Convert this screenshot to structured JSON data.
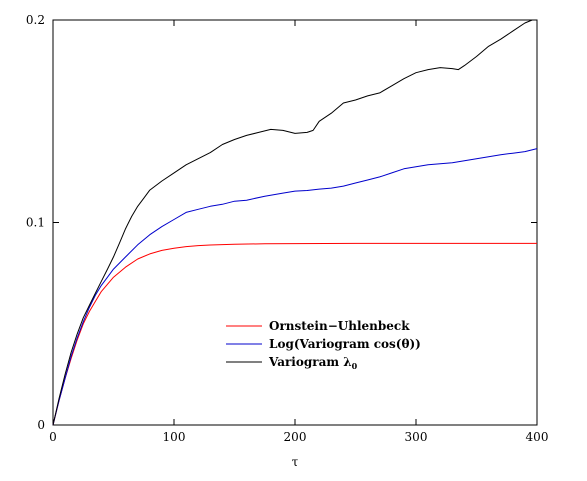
{
  "chart_data": {
    "type": "line",
    "xlabel": "τ",
    "ylabel": "",
    "xlim": [
      0,
      400
    ],
    "ylim": [
      0,
      0.2
    ],
    "x_ticks": [
      0,
      100,
      200,
      300,
      400
    ],
    "x_tick_labels": [
      "0",
      "100",
      "200",
      "300",
      "400"
    ],
    "y_ticks": [
      0,
      0.1,
      0.2
    ],
    "y_tick_labels": [
      "0",
      "0.1",
      "0.2"
    ],
    "grid": false,
    "legend_position": "lower-center",
    "series": [
      {
        "name": "Ornstein−Uhlenbeck",
        "color": "#ff0000",
        "x": [
          0,
          5,
          10,
          15,
          20,
          25,
          30,
          35,
          40,
          50,
          60,
          70,
          80,
          90,
          100,
          110,
          120,
          130,
          140,
          150,
          175,
          200,
          250,
          300,
          350,
          400
        ],
        "y": [
          0,
          0.012,
          0.023,
          0.033,
          0.042,
          0.05,
          0.056,
          0.061,
          0.066,
          0.073,
          0.078,
          0.082,
          0.0845,
          0.0862,
          0.0873,
          0.0881,
          0.0886,
          0.0889,
          0.0891,
          0.0893,
          0.0895,
          0.0896,
          0.0897,
          0.0897,
          0.0897,
          0.0897
        ]
      },
      {
        "name": "Log(Variogram cos(θ))",
        "color": "#0000cc",
        "x": [
          0,
          5,
          10,
          15,
          20,
          25,
          30,
          35,
          40,
          45,
          50,
          60,
          70,
          80,
          90,
          100,
          110,
          120,
          130,
          140,
          150,
          160,
          175,
          190,
          200,
          210,
          220,
          230,
          240,
          250,
          260,
          270,
          280,
          290,
          300,
          310,
          320,
          330,
          340,
          350,
          360,
          370,
          380,
          390,
          400
        ],
        "y": [
          0,
          0.012,
          0.023,
          0.034,
          0.043,
          0.051,
          0.058,
          0.064,
          0.069,
          0.073,
          0.077,
          0.083,
          0.089,
          0.094,
          0.098,
          0.1015,
          0.105,
          0.1065,
          0.108,
          0.109,
          0.1105,
          0.111,
          0.113,
          0.1145,
          0.1155,
          0.1158,
          0.1165,
          0.117,
          0.118,
          0.1195,
          0.121,
          0.1225,
          0.1245,
          0.1265,
          0.1275,
          0.1285,
          0.129,
          0.1295,
          0.1305,
          0.1315,
          0.1325,
          0.1335,
          0.1342,
          0.135,
          0.1365
        ]
      },
      {
        "name": "Variogram λ",
        "name_sub": "0",
        "color": "#000000",
        "x": [
          0,
          5,
          10,
          15,
          20,
          25,
          30,
          35,
          40,
          45,
          50,
          55,
          60,
          65,
          70,
          75,
          80,
          90,
          100,
          110,
          120,
          130,
          140,
          150,
          160,
          170,
          180,
          190,
          200,
          210,
          215,
          220,
          230,
          240,
          250,
          260,
          270,
          280,
          290,
          300,
          310,
          320,
          330,
          335,
          340,
          350,
          360,
          370,
          380,
          390,
          396
        ],
        "y": [
          0,
          0.013,
          0.025,
          0.036,
          0.045,
          0.053,
          0.059,
          0.065,
          0.071,
          0.077,
          0.083,
          0.09,
          0.097,
          0.103,
          0.108,
          0.112,
          0.116,
          0.1205,
          0.1245,
          0.1285,
          0.1315,
          0.1345,
          0.1385,
          0.141,
          0.143,
          0.1445,
          0.146,
          0.1455,
          0.144,
          0.1445,
          0.1455,
          0.15,
          0.154,
          0.159,
          0.1605,
          0.1625,
          0.164,
          0.1675,
          0.171,
          0.174,
          0.1755,
          0.1765,
          0.176,
          0.1755,
          0.1775,
          0.182,
          0.187,
          0.1905,
          0.1945,
          0.1985,
          0.2
        ]
      }
    ]
  }
}
